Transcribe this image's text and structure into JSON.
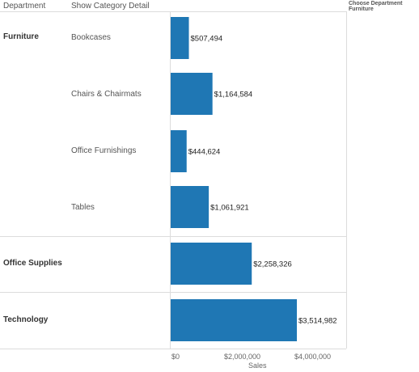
{
  "header": {
    "department_col": "Department",
    "category_col": "Show Category Detail"
  },
  "filter": {
    "title": "Choose Department",
    "value": "Furniture"
  },
  "chart_data": {
    "type": "bar",
    "orientation": "horizontal",
    "groups": [
      {
        "department": "Furniture",
        "categories": [
          "Bookcases",
          "Chairs & Chairmats",
          "Office Furnishings",
          "Tables"
        ]
      },
      {
        "department": "Office Supplies",
        "categories": [
          ""
        ]
      },
      {
        "department": "Technology",
        "categories": [
          ""
        ]
      }
    ],
    "rows": [
      {
        "department": "Furniture",
        "category": "Bookcases",
        "value": 507494,
        "label": "$507,494"
      },
      {
        "department": "Furniture",
        "category": "Chairs & Chairmats",
        "value": 1164584,
        "label": "$1,164,584"
      },
      {
        "department": "Furniture",
        "category": "Office Furnishings",
        "value": 444624,
        "label": "$444,624"
      },
      {
        "department": "Furniture",
        "category": "Tables",
        "value": 1061921,
        "label": "$1,061,921"
      },
      {
        "department": "Office Supplies",
        "category": "",
        "value": 2258326,
        "label": "$2,258,326"
      },
      {
        "department": "Technology",
        "category": "",
        "value": 3514982,
        "label": "$3,514,982"
      }
    ],
    "xlabel": "Sales",
    "xticks": [
      {
        "value": 0,
        "label": "$0"
      },
      {
        "value": 2000000,
        "label": "$2,000,000"
      },
      {
        "value": 4000000,
        "label": "$4,000,000"
      }
    ],
    "xlim": [
      0,
      5000000
    ],
    "bar_color": "#1f77b4",
    "grid": false
  }
}
